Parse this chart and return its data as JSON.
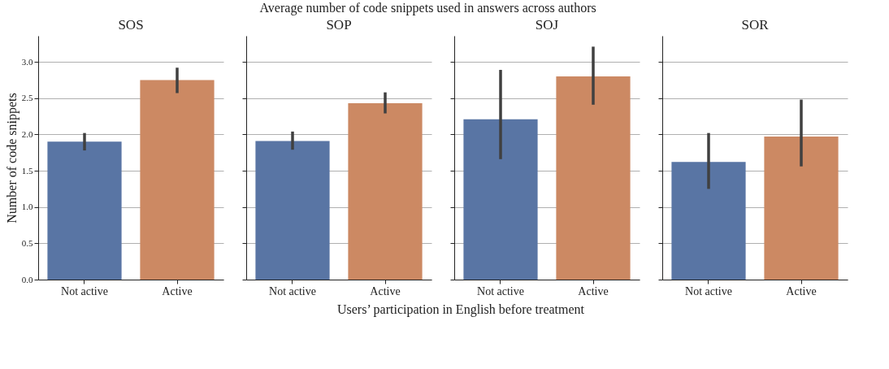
{
  "chart_data": [
    {
      "type": "bar",
      "title": "SOS",
      "ylabel": "Number of code snippets",
      "annotations": [
        "Average number of code snippets used in answers across authors",
        "Users’ participation in English before treatment"
      ],
      "categories": [
        "Not active",
        "Active"
      ],
      "values": [
        1.9,
        2.75
      ],
      "colors": [
        "#5975a4",
        "#cc8963"
      ],
      "errors": [
        [
          1.78,
          2.02
        ],
        [
          2.57,
          2.92
        ]
      ],
      "ylim": [
        0,
        3.36
      ],
      "yticks": [
        {
          "value": 0,
          "label": "0.0"
        },
        0.5,
        {
          "value": 1,
          "label": "1.0"
        },
        1.5,
        {
          "value": 2,
          "label": "2.0"
        },
        2.5,
        {
          "value": 3,
          "label": "3.0"
        }
      ],
      "grid": "y"
    },
    {
      "type": "bar",
      "title": "SOP",
      "categories": [
        "Not active",
        "Active"
      ],
      "values": [
        1.91,
        2.43
      ],
      "colors": [
        "#5975a4",
        "#cc8963"
      ],
      "errors": [
        [
          1.79,
          2.04
        ],
        [
          2.29,
          2.58
        ]
      ],
      "ylim": [
        0,
        3.36
      ],
      "yticks": [
        0,
        0.5,
        1,
        1.5,
        2,
        2.5,
        3
      ],
      "grid": "y",
      "tick_labels": "x"
    },
    {
      "type": "bar",
      "title": "SOJ",
      "categories": [
        "Not active",
        "Active"
      ],
      "values": [
        2.21,
        2.8
      ],
      "colors": [
        "#5975a4",
        "#cc8963"
      ],
      "errors": [
        [
          1.66,
          2.89
        ],
        [
          2.41,
          3.21
        ]
      ],
      "ylim": [
        0,
        3.36
      ],
      "yticks": [
        0,
        0.5,
        1,
        1.5,
        2,
        2.5,
        3
      ],
      "grid": "y",
      "tick_labels": "x"
    },
    {
      "type": "bar",
      "title": "SOR",
      "categories": [
        "Not active",
        "Active"
      ],
      "values": [
        1.62,
        1.97
      ],
      "colors": [
        "#5975a4",
        "#cc8963"
      ],
      "errors": [
        [
          1.25,
          2.02
        ],
        [
          1.56,
          2.48
        ]
      ],
      "ylim": [
        0,
        3.36
      ],
      "yticks": [
        0,
        0.5,
        1,
        1.5,
        2,
        2.5,
        3
      ],
      "grid": "y",
      "tick_labels": "x"
    }
  ]
}
